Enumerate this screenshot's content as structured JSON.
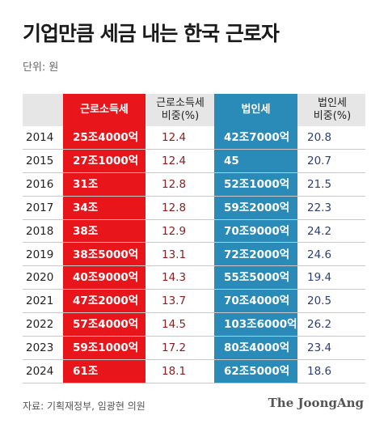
{
  "title": "기업만큼 세금 내는 한국 근로자",
  "unit": "단위: 원",
  "headers": {
    "labor_tax": "근로소득세",
    "labor_share_1": "근로소득세",
    "labor_share_2": "비중(%)",
    "corp_tax": "법인세",
    "corp_share_1": "법인세",
    "corp_share_2": "비중(%)"
  },
  "rows": [
    {
      "year": "2014",
      "labor_tax": "25조4000억",
      "labor_share": "12.4",
      "corp_tax": "42조7000억",
      "corp_share": "20.8"
    },
    {
      "year": "2015",
      "labor_tax": "27조1000억",
      "labor_share": "12.4",
      "corp_tax": "45",
      "corp_share": "20.7"
    },
    {
      "year": "2016",
      "labor_tax": "31조",
      "labor_share": "12.8",
      "corp_tax": "52조1000억",
      "corp_share": "21.5"
    },
    {
      "year": "2017",
      "labor_tax": "34조",
      "labor_share": "12.8",
      "corp_tax": "59조2000억",
      "corp_share": "22.3"
    },
    {
      "year": "2018",
      "labor_tax": "38조",
      "labor_share": "12.9",
      "corp_tax": "70조9000억",
      "corp_share": "24.2"
    },
    {
      "year": "2019",
      "labor_tax": "38조5000억",
      "labor_share": "13.1",
      "corp_tax": "72조2000억",
      "corp_share": "24.6"
    },
    {
      "year": "2020",
      "labor_tax": "40조9000억",
      "labor_share": "14.3",
      "corp_tax": "55조5000억",
      "corp_share": "19.4"
    },
    {
      "year": "2021",
      "labor_tax": "47조2000억",
      "labor_share": "13.7",
      "corp_tax": "70조4000억",
      "corp_share": "20.5"
    },
    {
      "year": "2022",
      "labor_tax": "57조4000억",
      "labor_share": "14.5",
      "corp_tax": "103조6000억",
      "corp_share": "26.2"
    },
    {
      "year": "2023",
      "labor_tax": "59조1000억",
      "labor_share": "17.2",
      "corp_tax": "80조4000억",
      "corp_share": "23.4"
    },
    {
      "year": "2024",
      "labor_tax": "61조",
      "labor_share": "18.1",
      "corp_tax": "62조5000억",
      "corp_share": "18.6"
    }
  ],
  "source": "자료: 기획재정부, 임광현 의원",
  "brand": "The JoongAng",
  "colors": {
    "red_column": "#e8151b",
    "blue_column": "#2a8ab8",
    "header_bg": "#e6e6e6"
  }
}
